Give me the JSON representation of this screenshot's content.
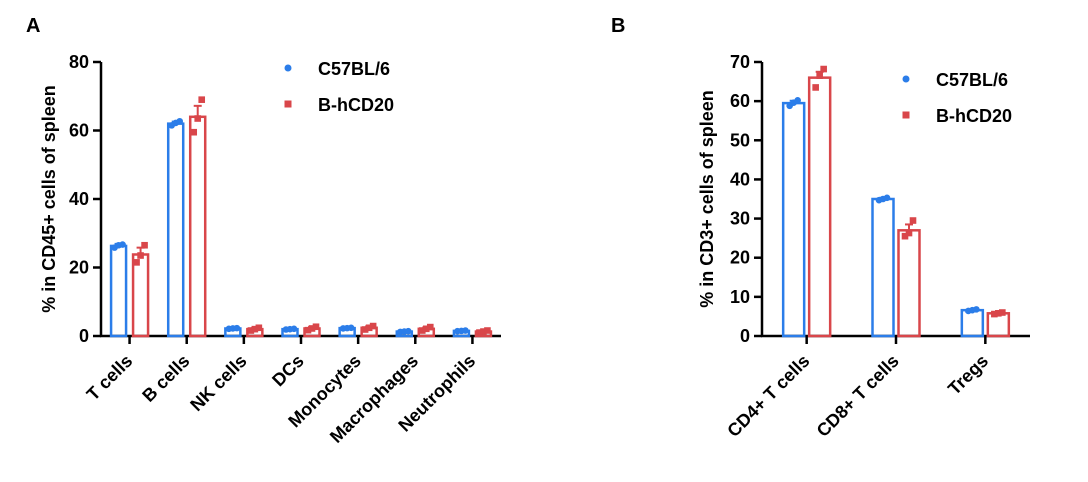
{
  "chart_data": [
    {
      "type": "bar",
      "panel_label": "A",
      "ylabel": "% in CD45+ cells of spleen",
      "ylim": [
        0,
        80
      ],
      "yticks": [
        0,
        20,
        40,
        60,
        80
      ],
      "categories": [
        "T cells",
        "B cells",
        "NK cells",
        "DCs",
        "Monocytes",
        "Macrophages",
        "Neutrophils"
      ],
      "legend_position": "top-right",
      "series": [
        {
          "name": "C57BL/6",
          "color": "#2b7de9",
          "marker": "circle",
          "values": [
            26.3,
            62,
            2.2,
            2,
            2.3,
            1.3,
            1.5
          ],
          "errors": [
            0.6,
            0.6,
            0.2,
            0.2,
            0.2,
            0.1,
            0.1
          ],
          "points": [
            [
              25.8,
              26.5,
              26.7
            ],
            [
              61.5,
              62.2,
              62.7
            ],
            [
              2.1,
              2.2,
              2.3
            ],
            [
              1.9,
              2.0,
              2.1
            ],
            [
              2.2,
              2.3,
              2.4
            ],
            [
              1.2,
              1.3,
              1.4
            ],
            [
              1.4,
              1.5,
              1.6
            ]
          ]
        },
        {
          "name": "B-hCD20",
          "color": "#d9464a",
          "marker": "square",
          "values": [
            23.8,
            64,
            2,
            2.2,
            2.4,
            2.1,
            1.3
          ],
          "errors": [
            2,
            3.2,
            0.3,
            0.4,
            0.4,
            0.4,
            0.3
          ],
          "points": [
            [
              21.5,
              23.5,
              26.5
            ],
            [
              59.5,
              63.5,
              69
            ],
            [
              1.6,
              2.0,
              2.4
            ],
            [
              1.7,
              2.2,
              2.7
            ],
            [
              1.9,
              2.4,
              2.9
            ],
            [
              1.6,
              2.1,
              2.6
            ],
            [
              1.0,
              1.3,
              1.6
            ]
          ]
        }
      ]
    },
    {
      "type": "bar",
      "panel_label": "B",
      "ylabel": "% in CD3+ cells of spleen",
      "ylim": [
        0,
        70
      ],
      "yticks": [
        0,
        10,
        20,
        30,
        40,
        50,
        60,
        70
      ],
      "categories": [
        "CD4+ T cells",
        "CD8+ T cells",
        "Tregs"
      ],
      "legend_position": "top-right",
      "series": [
        {
          "name": "C57BL/6",
          "color": "#2b7de9",
          "marker": "circle",
          "values": [
            59.5,
            35,
            6.6
          ],
          "errors": [
            0.6,
            0.3,
            0.2
          ],
          "points": [
            [
              58.8,
              59.6,
              60.2
            ],
            [
              34.7,
              35.0,
              35.3
            ],
            [
              6.4,
              6.6,
              6.8
            ]
          ]
        },
        {
          "name": "B-hCD20",
          "color": "#d9464a",
          "marker": "square",
          "values": [
            66,
            27,
            5.8
          ],
          "errors": [
            1.5,
            1.5,
            0.2
          ],
          "points": [
            [
              63.5,
              66.5,
              68.2
            ],
            [
              25.5,
              26.3,
              29.5
            ],
            [
              5.6,
              5.8,
              6.0
            ]
          ]
        }
      ]
    }
  ]
}
